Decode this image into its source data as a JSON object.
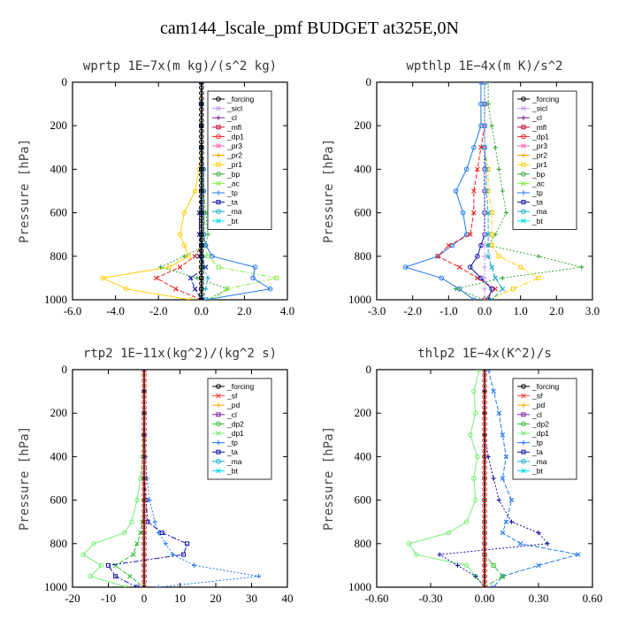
{
  "figure_title": "cam144_lscale_pmf  BUDGET at325E,0N",
  "colors": {
    "forcing": "#000000",
    "sicl": "#cc99ee",
    "cl": "#7a1fa2",
    "mfl": "#cc0033",
    "dp1": "#ee2222",
    "pr3": "#ff66aa",
    "pr2": "#ff9900",
    "pr1": "#ffcc00",
    "bp": "#33aa33",
    "ac": "#88ee44",
    "tp": "#2277ee",
    "ta": "#1111aa",
    "ma": "#11aacc",
    "bt": "#00ddee",
    "sf": "#ff4444",
    "pd": "#ffaa00",
    "dp2": "#33bb33",
    "dp1b": "#77ee77"
  },
  "chart_data": [
    {
      "type": "line",
      "title": "wprtp  1E−7x(m kg)/(s^2 kg)",
      "xlabel": "",
      "ylabel": "Pressure [hPa]",
      "xlim": [
        -6.0,
        4.0
      ],
      "ylim": [
        1000,
        0
      ],
      "xticks": [
        "-6.0",
        "-4.0",
        "-2.0",
        "0.0",
        "2.0",
        "4.0"
      ],
      "yticks": [
        "0",
        "200",
        "400",
        "600",
        "800",
        "1000"
      ],
      "legend": [
        "_forcing",
        "_sicl",
        "_cl",
        "_mfl",
        "_dp1",
        "_pr3",
        "_pr2",
        "_pr1",
        "_bp",
        "_ac",
        "_tp",
        "_ta",
        "_ma",
        "_bt"
      ],
      "legend_keys": [
        "forcing",
        "sicl",
        "cl",
        "mfl",
        "dp1",
        "pr3",
        "pr2",
        "pr1",
        "bp",
        "ac",
        "tp",
        "ta",
        "ma",
        "bt"
      ],
      "legend_position": "top-right",
      "pressure": [
        0,
        100,
        200,
        300,
        400,
        500,
        600,
        700,
        750,
        800,
        850,
        900,
        950,
        1000
      ],
      "series": [
        {
          "key": "pr1",
          "values": [
            0,
            0,
            0,
            0,
            -0.1,
            -0.3,
            -0.8,
            -1.0,
            -0.8,
            -0.6,
            -1.5,
            -4.6,
            -3.5,
            -0.5
          ]
        },
        {
          "key": "dp1",
          "values": [
            0,
            0,
            0,
            0,
            0,
            0,
            0,
            0,
            0,
            -0.3,
            -1.0,
            -2.1,
            -1.2,
            0
          ]
        },
        {
          "key": "bp",
          "values": [
            0,
            0,
            0,
            0,
            0.1,
            0.1,
            0.2,
            0.3,
            0.2,
            -0.8,
            -1.9,
            -0.2,
            1.2,
            0.3
          ]
        },
        {
          "key": "ac",
          "values": [
            0,
            0,
            0,
            0,
            0,
            0.1,
            0.2,
            0.1,
            0.1,
            0.3,
            0.8,
            3.5,
            1.2,
            0.5
          ]
        },
        {
          "key": "tp",
          "values": [
            0,
            0,
            0,
            0,
            0.1,
            0.1,
            0.1,
            0.1,
            0.2,
            0.5,
            2.5,
            2.4,
            3.2,
            0.2
          ]
        },
        {
          "key": "ta",
          "values": [
            0,
            0,
            0,
            0,
            0,
            0,
            -0.1,
            -0.1,
            0,
            -0.1,
            0.2,
            -0.5,
            -0.3,
            0
          ]
        },
        {
          "key": "ma",
          "values": [
            0,
            0,
            0,
            0,
            0,
            0,
            0,
            0,
            0,
            0.1,
            0.1,
            0.3,
            0.2,
            0.1
          ]
        },
        {
          "key": "forcing",
          "values": [
            0,
            0,
            0,
            0,
            0,
            0,
            0,
            0,
            0,
            0,
            0,
            0,
            0,
            0
          ]
        }
      ]
    },
    {
      "type": "line",
      "title": "wpthlp  1E−4x(m K)/s^2",
      "xlabel": "",
      "ylabel": "Pressure [hPa]",
      "xlim": [
        -3.0,
        3.0
      ],
      "ylim": [
        1000,
        0
      ],
      "xticks": [
        "-3.0",
        "-2.0",
        "-1.0",
        "0.0",
        "1.0",
        "2.0",
        "3.0"
      ],
      "yticks": [
        "0",
        "200",
        "400",
        "600",
        "800",
        "1000"
      ],
      "legend": [
        "_forcing",
        "_sicl",
        "_cl",
        "_mfl",
        "_dp1",
        "_pr3",
        "_pr2",
        "_pr1",
        "_bp",
        "_ac",
        "_tp",
        "_ta",
        "_ma",
        "_bt"
      ],
      "legend_keys": [
        "forcing",
        "sicl",
        "cl",
        "mfl",
        "dp1",
        "pr3",
        "pr2",
        "pr1",
        "bp",
        "ac",
        "tp",
        "ta",
        "ma",
        "bt"
      ],
      "legend_position": "top-right",
      "pressure": [
        0,
        100,
        200,
        300,
        400,
        500,
        600,
        700,
        750,
        800,
        850,
        900,
        950,
        1000
      ],
      "series": [
        {
          "key": "tp",
          "values": [
            -0.1,
            -0.1,
            -0.1,
            -0.3,
            -0.5,
            -0.8,
            -0.6,
            -0.5,
            -0.9,
            -1.3,
            -2.2,
            -1.2,
            -0.7,
            -0.3
          ]
        },
        {
          "key": "dp1",
          "values": [
            0,
            0,
            0,
            -0.1,
            -0.2,
            -0.3,
            -0.3,
            -0.4,
            -1.0,
            -1.3,
            -0.7,
            -0.2,
            0.3,
            0
          ]
        },
        {
          "key": "bp",
          "values": [
            0.1,
            0.1,
            0.2,
            0.3,
            0.4,
            0.5,
            0.6,
            0.3,
            0.1,
            1.5,
            2.7,
            0.5,
            -0.8,
            0
          ]
        },
        {
          "key": "pr1",
          "values": [
            0,
            0,
            0,
            0,
            0.1,
            0.1,
            0.2,
            0.2,
            0.2,
            0.4,
            1.0,
            1.5,
            0.8,
            0.1
          ]
        },
        {
          "key": "ta",
          "values": [
            0,
            0,
            0,
            0,
            0,
            0,
            0,
            0,
            -0.1,
            -0.2,
            -0.4,
            -0.1,
            0.2,
            0.1
          ]
        },
        {
          "key": "ma",
          "values": [
            0,
            0,
            0,
            0,
            0.05,
            0.05,
            0.1,
            0.1,
            0.1,
            0.1,
            0.2,
            0.3,
            0.5,
            0.2
          ]
        },
        {
          "key": "sicl",
          "values": [
            0,
            0,
            0,
            0,
            0,
            0,
            0,
            0,
            0,
            0,
            0,
            0,
            0,
            0
          ]
        }
      ]
    },
    {
      "type": "line",
      "title": "rtp2  1E−11x(kg^2)/(kg^2 s)",
      "xlabel": "",
      "ylabel": "Pressure [hPa]",
      "xlim": [
        -20,
        40
      ],
      "ylim": [
        1000,
        0
      ],
      "xticks": [
        "-20",
        "-10",
        "0",
        "10",
        "20",
        "30",
        "40"
      ],
      "yticks": [
        "0",
        "200",
        "400",
        "600",
        "800",
        "1000"
      ],
      "legend": [
        "_forcing",
        "_sf",
        "_pd",
        "_cl",
        "_dp2",
        "_dp1",
        "_tp",
        "_ta",
        "_ma",
        "_bt"
      ],
      "legend_keys": [
        "forcing",
        "sf",
        "pd",
        "cl",
        "dp2",
        "dp1b",
        "tp",
        "ta",
        "ma",
        "bt"
      ],
      "legend_position": "top-right",
      "pressure": [
        0,
        100,
        200,
        300,
        400,
        500,
        600,
        700,
        750,
        800,
        850,
        900,
        950,
        1000
      ],
      "series": [
        {
          "key": "dp1b",
          "values": [
            0,
            0,
            0,
            -0.2,
            -0.5,
            -1.0,
            -2.0,
            -3.5,
            -5.5,
            -14.0,
            -17.0,
            -12.0,
            -15.0,
            -5.0
          ]
        },
        {
          "key": "dp2",
          "values": [
            0,
            0,
            0,
            0,
            0,
            0,
            0,
            -0.5,
            -1.0,
            -2.0,
            -3.0,
            -8.0,
            -4.0,
            0
          ]
        },
        {
          "key": "tp",
          "values": [
            0,
            0,
            0,
            0.2,
            0.4,
            0.8,
            1.5,
            3.0,
            4.0,
            6.0,
            8.0,
            14.0,
            32.0,
            4.0
          ]
        },
        {
          "key": "ta",
          "values": [
            0,
            0,
            0,
            0,
            0,
            0,
            0.5,
            1.0,
            5.0,
            12.0,
            11.0,
            -10.0,
            -8.0,
            -2.0
          ]
        },
        {
          "key": "forcing",
          "values": [
            0,
            0,
            0,
            0,
            0,
            0,
            0,
            0,
            0,
            0,
            0,
            0,
            0,
            0
          ]
        }
      ]
    },
    {
      "type": "line",
      "title": "thlp2  1E−4x(K^2)/s",
      "xlabel": "",
      "ylabel": "Pressure [hPa]",
      "xlim": [
        -0.6,
        0.6
      ],
      "ylim": [
        1000,
        0
      ],
      "xticks": [
        "-0.60",
        "-0.30",
        "0.00",
        "0.30",
        "0.60"
      ],
      "yticks": [
        "0",
        "200",
        "400",
        "600",
        "800",
        "1000"
      ],
      "legend": [
        "_forcing",
        "_sf",
        "_pd",
        "_cl",
        "_dp2",
        "_dp1",
        "_tp",
        "_ta",
        "_ma",
        "_bt"
      ],
      "legend_keys": [
        "forcing",
        "sf",
        "pd",
        "cl",
        "dp2",
        "dp1b",
        "tp",
        "ta",
        "ma",
        "bt"
      ],
      "legend_position": "top-right",
      "pressure": [
        0,
        100,
        200,
        300,
        400,
        500,
        600,
        700,
        750,
        800,
        850,
        900,
        950,
        1000
      ],
      "series": [
        {
          "key": "dp1b",
          "values": [
            -0.03,
            -0.06,
            -0.05,
            -0.08,
            -0.04,
            -0.06,
            -0.05,
            -0.1,
            -0.2,
            -0.42,
            -0.38,
            -0.1,
            -0.05,
            0
          ]
        },
        {
          "key": "tp",
          "values": [
            0.02,
            0.05,
            0.08,
            0.1,
            0.12,
            0.1,
            0.15,
            0.12,
            0.1,
            0.2,
            0.52,
            0.3,
            0.1,
            0.05
          ]
        },
        {
          "key": "ta",
          "values": [
            0,
            0,
            0,
            0,
            0.02,
            0.05,
            0.08,
            0.15,
            0.3,
            0.35,
            -0.25,
            -0.15,
            -0.05,
            0
          ]
        },
        {
          "key": "dp2",
          "values": [
            0,
            0,
            0,
            0,
            0,
            0,
            0,
            0,
            0,
            0,
            0,
            0.05,
            0.1,
            0
          ]
        },
        {
          "key": "forcing",
          "values": [
            0,
            0,
            0,
            0,
            0,
            0,
            0,
            0,
            0,
            0,
            0,
            0,
            0,
            0
          ]
        }
      ]
    }
  ]
}
